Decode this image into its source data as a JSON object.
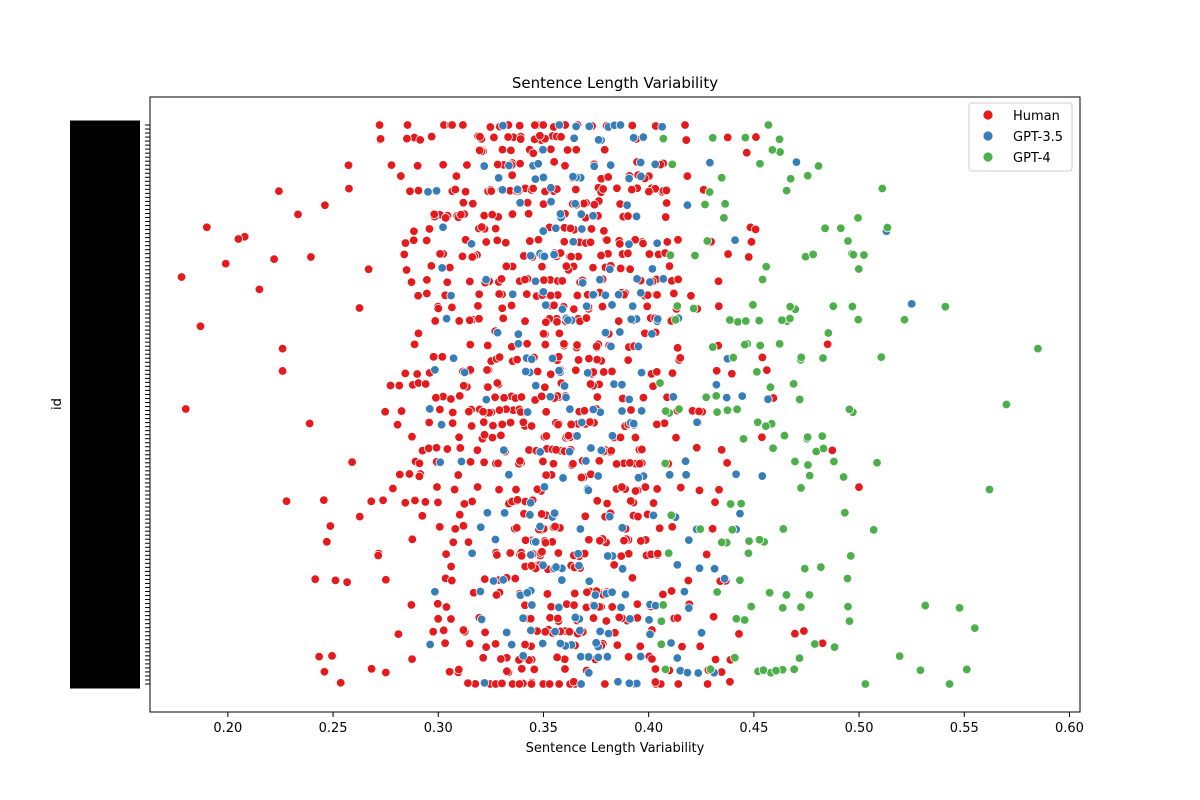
{
  "chart_data": {
    "type": "scatter",
    "title": "Sentence Length Variability",
    "xlabel": "Sentence Length Variability",
    "ylabel": "id",
    "xlim": [
      0.163,
      0.605
    ],
    "y_categories_count": 140,
    "xticks": [
      "0.20",
      "0.25",
      "0.30",
      "0.35",
      "0.40",
      "0.45",
      "0.50",
      "0.55",
      "0.60"
    ],
    "grid": false,
    "legend_position": "top-right",
    "series": [
      {
        "name": "Human",
        "color": "#e41a1c",
        "distribution": {
          "count": 860,
          "mean": 0.355,
          "sd": 0.045,
          "x_range": [
            0.183,
            0.549
          ]
        },
        "points": [
          [
            0.19,
            0.183
          ],
          [
            0.208,
            0.2
          ],
          [
            0.205,
            0.204
          ],
          [
            0.199,
            0.248
          ],
          [
            0.222,
            0.24
          ],
          [
            0.178,
            0.272
          ],
          [
            0.215,
            0.294
          ],
          [
            0.187,
            0.36
          ],
          [
            0.226,
            0.44
          ],
          [
            0.226,
            0.4
          ],
          [
            0.18,
            0.508
          ]
        ]
      },
      {
        "name": "GPT-3.5",
        "color": "#377eb8",
        "distribution": {
          "count": 260,
          "mean": 0.368,
          "sd": 0.035,
          "x_range": [
            0.295,
            0.525
          ]
        },
        "points": [
          [
            0.513,
            0.19
          ],
          [
            0.525,
            0.32
          ]
        ]
      },
      {
        "name": "GPT-4",
        "color": "#4daf4a",
        "distribution": {
          "count": 150,
          "mean": 0.46,
          "sd": 0.035,
          "x_range": [
            0.405,
            0.585
          ]
        },
        "points": [
          [
            0.585,
            0.4
          ],
          [
            0.57,
            0.5
          ],
          [
            0.555,
            0.9
          ],
          [
            0.543,
            1.1
          ],
          [
            0.541,
            0.325
          ]
        ]
      }
    ]
  }
}
